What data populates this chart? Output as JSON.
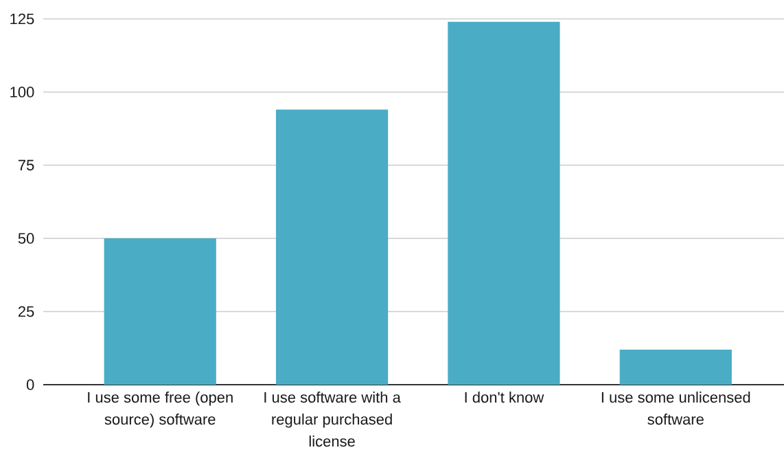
{
  "chart_data": {
    "type": "bar",
    "categories": [
      "I use some free (open source) software",
      "I use software with a regular purchased license",
      "I don't know",
      "I use some unlicensed software"
    ],
    "values": [
      50,
      94,
      124,
      12
    ],
    "color": "#4bacc6",
    "ylim": [
      0,
      125
    ],
    "yticks": [
      0,
      25,
      50,
      75,
      100,
      125
    ],
    "grid": "y"
  }
}
